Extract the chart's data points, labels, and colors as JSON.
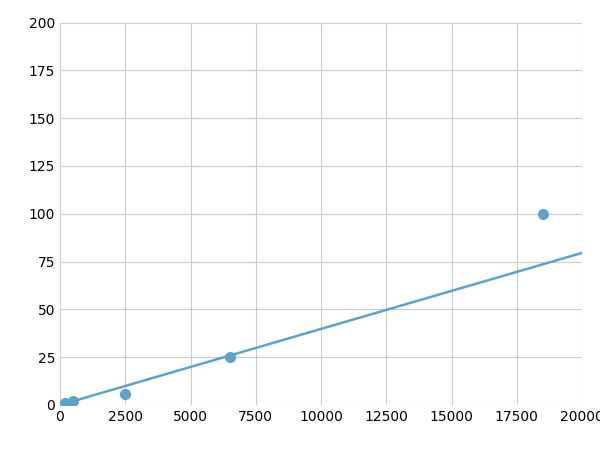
{
  "x": [
    200,
    500,
    2500,
    6500,
    18500
  ],
  "y": [
    1,
    2,
    6,
    25,
    100
  ],
  "line_color": "#5ba3c9",
  "marker_color": "#5ba3c9",
  "marker_size": 7,
  "line_width": 1.8,
  "xlim": [
    0,
    20000
  ],
  "ylim": [
    0,
    200
  ],
  "xticks": [
    0,
    2500,
    5000,
    7500,
    10000,
    12500,
    15000,
    17500,
    20000
  ],
  "yticks": [
    0,
    25,
    50,
    75,
    100,
    125,
    150,
    175,
    200
  ],
  "grid_color": "#cccccc",
  "background_color": "#ffffff",
  "tick_labelsize": 10,
  "figsize": [
    6.0,
    4.5
  ],
  "dpi": 100
}
